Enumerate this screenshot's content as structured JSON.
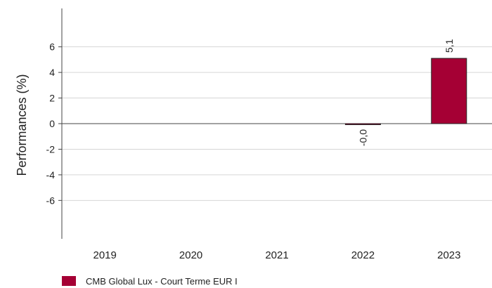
{
  "chart_data": {
    "type": "bar",
    "categories": [
      "2019",
      "2020",
      "2021",
      "2022",
      "2023"
    ],
    "series": [
      {
        "name": "CMB Global Lux - Court Terme EUR I",
        "values": [
          null,
          null,
          null,
          -0.0,
          5.1
        ],
        "labels": [
          "",
          "",
          "",
          "-0,0",
          "5,1"
        ],
        "color": "#a50034"
      }
    ],
    "ylabel": "Performances (%)",
    "ylim": [
      -9,
      9
    ],
    "yticks": [
      6,
      4,
      2,
      0,
      -2,
      -4,
      -6
    ],
    "ytick_labels": [
      "6",
      "4",
      "2",
      "0",
      "-2",
      "-4",
      "-6"
    ],
    "grid": true,
    "legend_position": "bottom-left"
  }
}
